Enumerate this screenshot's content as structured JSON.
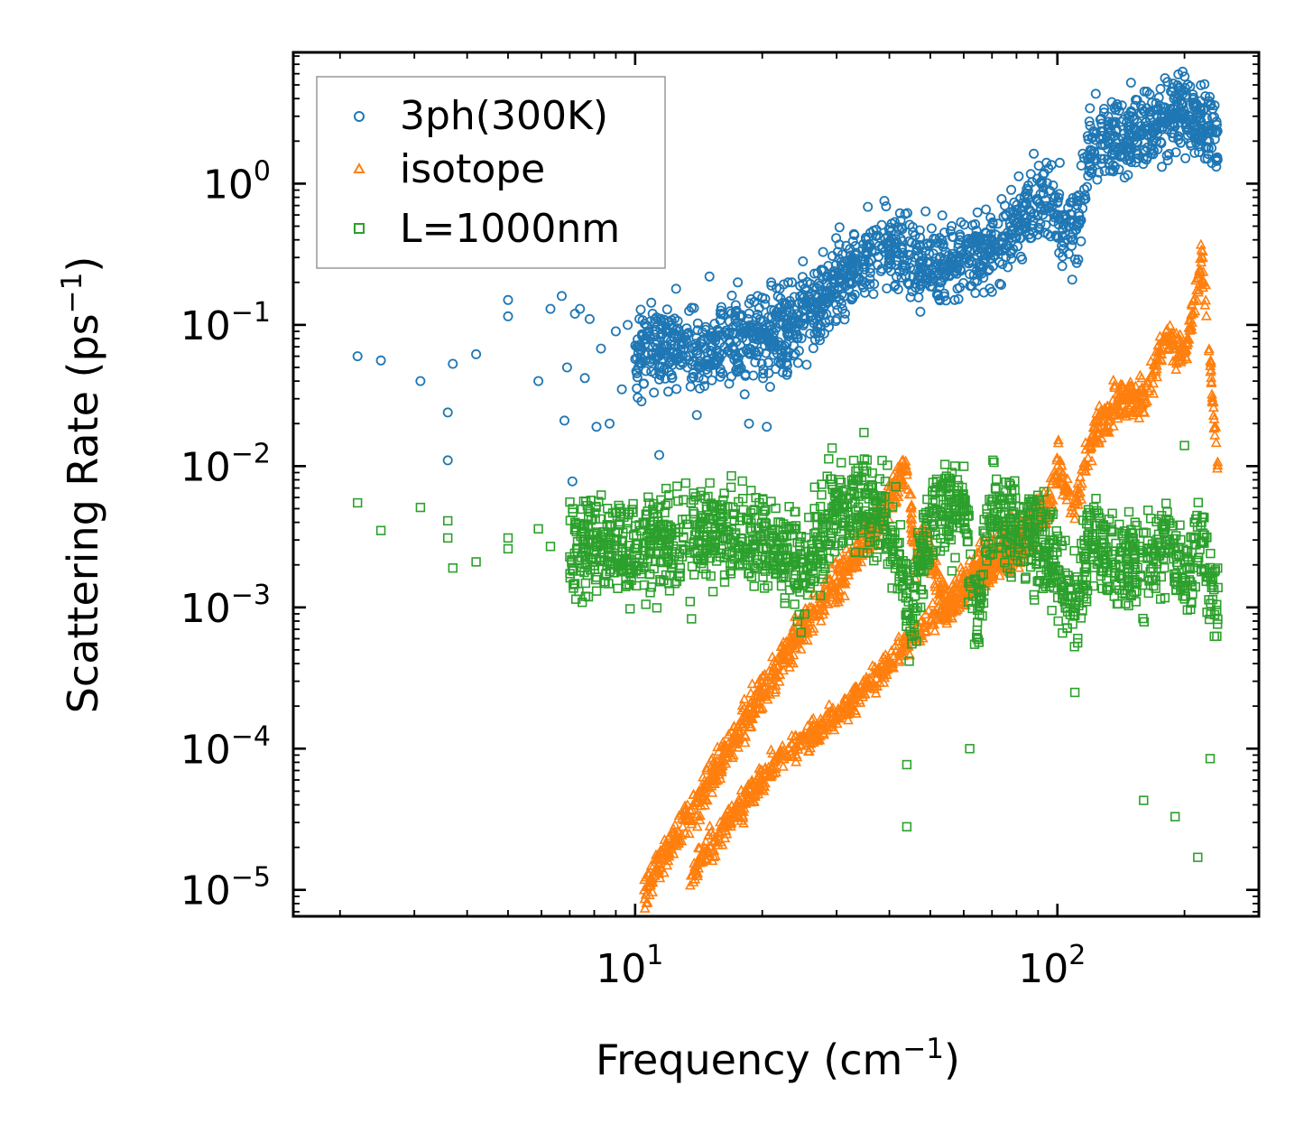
{
  "chart_data": {
    "type": "scatter",
    "xscale": "log",
    "yscale": "log",
    "xlim": [
      1.55,
      300
    ],
    "ylim": [
      6.5e-06,
      8.5
    ],
    "xlabel": {
      "text": "Frequency (cm",
      "sup": "−1",
      "tail": ")"
    },
    "ylabel": {
      "text": "Scattering Rate (ps",
      "sup": "−1",
      "tail": ")"
    },
    "xticks": [
      {
        "value": 10,
        "base": "10",
        "exp": "1"
      },
      {
        "value": 100,
        "base": "10",
        "exp": "2"
      }
    ],
    "yticks": [
      {
        "value": 1e-05,
        "base": "10",
        "exp": "−5"
      },
      {
        "value": 0.0001,
        "base": "10",
        "exp": "−4"
      },
      {
        "value": 0.001,
        "base": "10",
        "exp": "−3"
      },
      {
        "value": 0.01,
        "base": "10",
        "exp": "−2"
      },
      {
        "value": 0.1,
        "base": "10",
        "exp": "−1"
      },
      {
        "value": 1,
        "base": "10",
        "exp": "0"
      }
    ],
    "legend_position": "top-left",
    "series": [
      {
        "name": "3ph(300K)",
        "marker": "circle",
        "color": "#1f77b4",
        "points": [
          [
            2.2,
            0.06
          ],
          [
            2.5,
            0.056
          ],
          [
            3.1,
            0.04
          ],
          [
            3.6,
            0.024
          ],
          [
            3.6,
            0.011
          ],
          [
            3.7,
            0.053
          ],
          [
            4.2,
            0.062
          ],
          [
            5.0,
            0.15
          ],
          [
            5.0,
            0.115
          ],
          [
            5.9,
            0.04
          ],
          [
            6.3,
            0.13
          ],
          [
            6.7,
            0.16
          ],
          [
            6.9,
            0.05
          ],
          [
            6.8,
            0.021
          ],
          [
            7.1,
            0.0078
          ],
          [
            7.2,
            0.12
          ],
          [
            7.4,
            0.13
          ],
          [
            7.6,
            0.042
          ],
          [
            7.8,
            0.11
          ],
          [
            8.1,
            0.019
          ],
          [
            8.3,
            0.068
          ],
          [
            8.7,
            0.02
          ],
          [
            9.0,
            0.09
          ],
          [
            9.3,
            0.035
          ],
          [
            9.6,
            0.1
          ],
          [
            10.2,
            0.07
          ],
          [
            11.0,
            0.12
          ],
          [
            11.4,
            0.012
          ],
          [
            11.8,
            0.09
          ],
          [
            12.5,
            0.18
          ],
          [
            13.3,
            0.05
          ],
          [
            14.0,
            0.023
          ],
          [
            15.0,
            0.22
          ],
          [
            16.0,
            0.12
          ],
          [
            17.5,
            0.2
          ],
          [
            18.6,
            0.02
          ],
          [
            19.5,
            0.16
          ],
          [
            20.5,
            0.019
          ],
          [
            21.0,
            0.2
          ],
          [
            22.0,
            0.18
          ],
          [
            23.5,
            0.2
          ]
        ],
        "trend": [
          [
            10,
            0.06
          ],
          [
            12,
            0.07
          ],
          [
            15,
            0.065
          ],
          [
            20,
            0.08
          ],
          [
            25,
            0.11
          ],
          [
            30,
            0.2
          ],
          [
            35,
            0.3
          ],
          [
            40,
            0.35
          ],
          [
            45,
            0.28
          ],
          [
            50,
            0.25
          ],
          [
            55,
            0.28
          ],
          [
            60,
            0.3
          ],
          [
            65,
            0.32
          ],
          [
            70,
            0.35
          ],
          [
            80,
            0.5
          ],
          [
            90,
            0.7
          ],
          [
            95,
            0.8
          ],
          [
            100,
            0.6
          ],
          [
            110,
            0.45
          ],
          [
            120,
            2.0
          ],
          [
            140,
            2.2
          ],
          [
            160,
            2.5
          ],
          [
            180,
            3.0
          ],
          [
            200,
            3.5
          ],
          [
            220,
            2.5
          ],
          [
            240,
            2.0
          ]
        ]
      },
      {
        "name": "isotope",
        "marker": "triangle",
        "color": "#ff7f0e",
        "trend_upper": [
          [
            10.5,
            1e-05
          ],
          [
            12,
            2e-05
          ],
          [
            14,
            4e-05
          ],
          [
            16,
            8e-05
          ],
          [
            18,
            0.00015
          ],
          [
            20,
            0.00025
          ],
          [
            22,
            0.0004
          ],
          [
            25,
            0.0007
          ],
          [
            30,
            0.0015
          ],
          [
            35,
            0.003
          ],
          [
            40,
            0.006
          ],
          [
            44,
            0.01
          ],
          [
            46,
            0.002
          ],
          [
            48,
            0.003
          ],
          [
            55,
            0.001
          ],
          [
            65,
            0.002
          ],
          [
            80,
            0.003
          ],
          [
            95,
            0.005
          ],
          [
            100,
            0.01
          ],
          [
            110,
            0.005
          ],
          [
            120,
            0.015
          ],
          [
            140,
            0.03
          ],
          [
            160,
            0.03
          ],
          [
            180,
            0.08
          ],
          [
            200,
            0.06
          ],
          [
            220,
            0.3
          ],
          [
            240,
            0.01
          ]
        ],
        "trend_lower": [
          [
            13.5,
            1.2e-05
          ],
          [
            15,
            2e-05
          ],
          [
            18,
            4e-05
          ],
          [
            20,
            6e-05
          ],
          [
            22,
            9e-05
          ],
          [
            25,
            0.00011
          ],
          [
            28,
            0.00015
          ],
          [
            32,
            0.0002
          ],
          [
            36,
            0.0003
          ],
          [
            40,
            0.0004
          ],
          [
            45,
            0.0006
          ],
          [
            50,
            0.0008
          ],
          [
            60,
            0.0012
          ],
          [
            70,
            0.0018
          ],
          [
            85,
            0.0025
          ]
        ]
      },
      {
        "name": "L=1000nm",
        "marker": "square",
        "color": "#2ca02c",
        "points": [
          [
            2.2,
            0.0055
          ],
          [
            2.5,
            0.0035
          ],
          [
            3.1,
            0.0051
          ],
          [
            3.6,
            0.0041
          ],
          [
            3.6,
            0.0031
          ],
          [
            3.7,
            0.0019
          ],
          [
            4.2,
            0.0021
          ],
          [
            5.0,
            0.0031
          ],
          [
            5.0,
            0.0026
          ],
          [
            5.9,
            0.0036
          ],
          [
            6.3,
            0.0027
          ],
          [
            13.5,
            0.0011
          ],
          [
            13.6,
            0.00083
          ],
          [
            44,
            7.7e-05
          ],
          [
            44,
            2.8e-05
          ],
          [
            62,
            0.0001
          ],
          [
            110,
            0.00025
          ],
          [
            160,
            4.3e-05
          ],
          [
            190,
            3.3e-05
          ],
          [
            215,
            1.7e-05
          ],
          [
            230,
            8.5e-05
          ],
          [
            200,
            0.014
          ]
        ],
        "trend": [
          [
            7,
            0.0028
          ],
          [
            10,
            0.0025
          ],
          [
            15,
            0.0035
          ],
          [
            20,
            0.003
          ],
          [
            25,
            0.002
          ],
          [
            30,
            0.005
          ],
          [
            35,
            0.006
          ],
          [
            40,
            0.004
          ],
          [
            45,
            0.0008
          ],
          [
            50,
            0.005
          ],
          [
            60,
            0.005
          ],
          [
            65,
            0.0008
          ],
          [
            70,
            0.005
          ],
          [
            80,
            0.004
          ],
          [
            90,
            0.003
          ],
          [
            100,
            0.002
          ],
          [
            110,
            0.001
          ],
          [
            120,
            0.003
          ],
          [
            140,
            0.002
          ],
          [
            160,
            0.002
          ],
          [
            180,
            0.003
          ],
          [
            200,
            0.0015
          ],
          [
            220,
            0.003
          ],
          [
            240,
            0.0008
          ]
        ]
      }
    ]
  }
}
